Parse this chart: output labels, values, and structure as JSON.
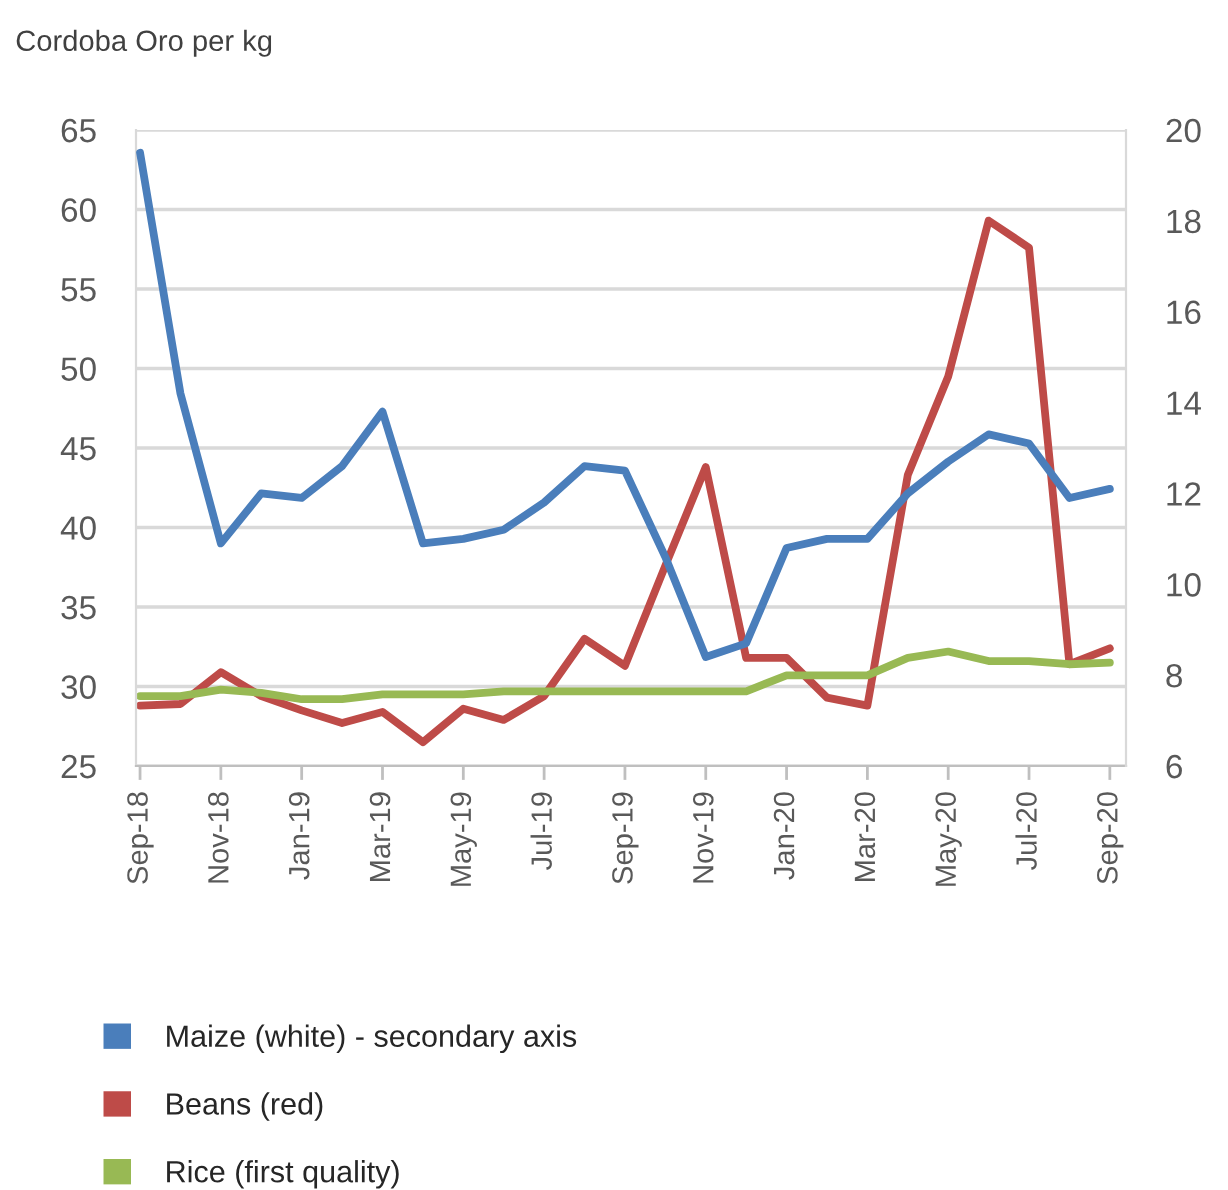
{
  "chart_data": {
    "type": "line",
    "ylabel": "Cordoba Oro per kg",
    "categories": [
      "Sep-18",
      null,
      "Nov-18",
      null,
      "Jan-19",
      null,
      "Mar-19",
      null,
      "May-19",
      null,
      "Jul-19",
      null,
      "Sep-19",
      null,
      "Nov-19",
      null,
      "Jan-20",
      null,
      "Mar-20",
      null,
      "May-20",
      null,
      "Jul-20",
      null,
      "Sep-20"
    ],
    "series": [
      {
        "name": "Maize (white) - secondary axis",
        "color": "#4a7ebb",
        "axis": "y2",
        "values": [
          19.5,
          14.2,
          10.9,
          12.0,
          11.9,
          12.6,
          13.8,
          10.9,
          11.0,
          11.2,
          11.8,
          12.6,
          12.5,
          10.6,
          8.4,
          8.7,
          10.8,
          11.0,
          11.0,
          12.0,
          12.7,
          13.3,
          13.1,
          11.9,
          12.1
        ]
      },
      {
        "name": "Beans (red)",
        "color": "#be4b48",
        "values": [
          28.8,
          28.9,
          30.9,
          29.4,
          28.5,
          27.7,
          28.4,
          26.5,
          28.6,
          27.9,
          29.4,
          33.0,
          31.3,
          37.6,
          43.8,
          31.8,
          31.8,
          29.3,
          28.8,
          43.3,
          49.5,
          59.3,
          57.6,
          31.4,
          32.4
        ]
      },
      {
        "name": "Rice (first quality)",
        "color": "#98b954",
        "values": [
          29.4,
          29.4,
          29.8,
          29.6,
          29.2,
          29.2,
          29.5,
          29.5,
          29.5,
          29.7,
          29.7,
          29.7,
          29.7,
          29.7,
          29.7,
          29.7,
          30.7,
          30.7,
          30.7,
          31.8,
          32.2,
          31.6,
          31.6,
          31.4,
          31.5
        ]
      }
    ],
    "ylim": [
      25,
      65
    ],
    "yticks": [
      25,
      30,
      35,
      40,
      45,
      50,
      55,
      60,
      65
    ],
    "y2lim": [
      6,
      20
    ],
    "y2ticks": [
      6,
      8,
      10,
      12,
      14,
      16,
      18,
      20
    ],
    "grid": "y",
    "legend": "bottom",
    "line_style": "solid"
  }
}
